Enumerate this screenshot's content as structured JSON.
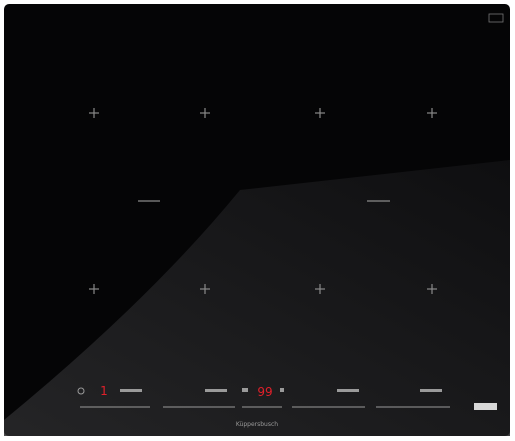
{
  "brand": "Küppersbusch",
  "displays": {
    "left": "1",
    "center": "99"
  }
}
